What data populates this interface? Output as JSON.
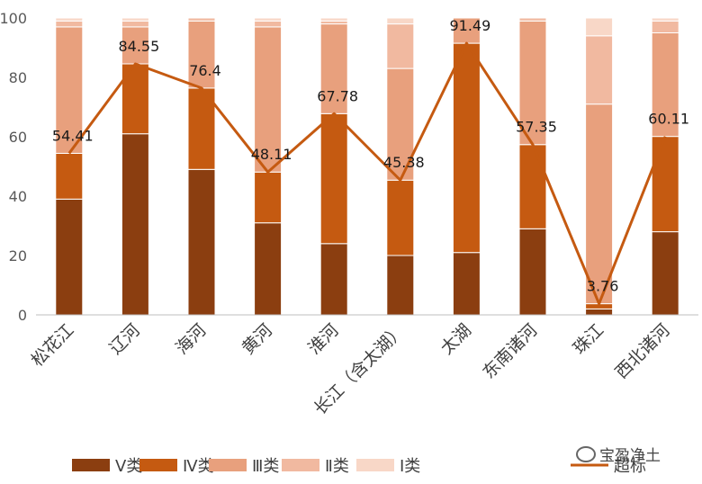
{
  "chart_data": {
    "type": "bar",
    "stacked": true,
    "categories": [
      "松花江",
      "辽河",
      "海河",
      "黄河",
      "淮河",
      "长江（含太湖）",
      "太湖",
      "东南诸河",
      "珠江",
      "西北诸河"
    ],
    "series": [
      {
        "name": "Ⅴ类",
        "color": "#8B3E10",
        "values": [
          39,
          61,
          49,
          31,
          24,
          20,
          21,
          29,
          2,
          28
        ]
      },
      {
        "name": "Ⅳ类",
        "color": "#C55A11",
        "values": [
          15.41,
          23.55,
          27.4,
          17.11,
          43.78,
          25.38,
          70.49,
          28.35,
          1.76,
          32.11
        ]
      },
      {
        "name": "Ⅲ类",
        "color": "#E8A07D",
        "values": [
          42.59,
          12.45,
          22.6,
          48.89,
          30.22,
          37.62,
          8.51,
          41.65,
          67.24,
          34.89
        ]
      },
      {
        "name": "Ⅱ类",
        "color": "#F1B9A0",
        "values": [
          2,
          2,
          1,
          2,
          1,
          15,
          0,
          1,
          23,
          4
        ]
      },
      {
        "name": "Ⅰ类",
        "color": "#F8D7C7",
        "values": [
          1,
          1,
          0,
          1,
          1,
          2,
          0,
          0,
          6,
          1
        ]
      }
    ],
    "line": {
      "name": "超标",
      "color": "#C55A11",
      "values": [
        54.41,
        84.55,
        76.4,
        48.11,
        67.78,
        45.38,
        91.49,
        57.35,
        3.76,
        60.11
      ],
      "labels": [
        "54.41",
        "84.55",
        "76.4",
        "48.11",
        "67.78",
        "45.38",
        "91.49",
        "57.35",
        "3.76",
        "60.11"
      ]
    },
    "ylim": [
      0,
      100
    ],
    "yticks": [
      "0",
      "20",
      "40",
      "60",
      "80",
      "100"
    ],
    "grid": false,
    "legend_position": "bottom"
  },
  "watermark": "宝盈净土"
}
